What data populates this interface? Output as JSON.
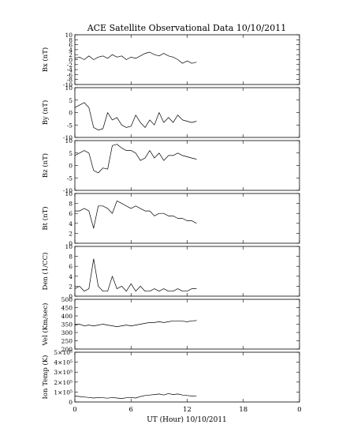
{
  "title": "ACE Satellite Observational Data   10/10/2011",
  "xlabel": "UT (Hour)   10/10/2011",
  "x_ticks": [
    "0",
    "6",
    "12",
    "18",
    "0"
  ],
  "chart_data": [
    {
      "type": "line",
      "ylabel": "Bx (nT)",
      "ylim": [
        -10,
        10
      ],
      "yticks": [
        10,
        8,
        6,
        4,
        2,
        0,
        -2,
        -4,
        -6,
        -8,
        -10
      ],
      "ytick_labels": [
        "10",
        "8",
        "6",
        "4",
        "2",
        "0",
        "-2",
        "-4",
        "-6",
        "-8",
        "-10"
      ],
      "x_hours": [
        0,
        0.5,
        1,
        1.5,
        2,
        2.5,
        3,
        3.5,
        4,
        4.5,
        5,
        5.5,
        6,
        6.5,
        7,
        7.5,
        8,
        8.5,
        9,
        9.5,
        10,
        10.5,
        11,
        11.5,
        12,
        12.5,
        13
      ],
      "values": [
        0.5,
        1,
        0,
        1.5,
        0,
        1,
        1.5,
        0.5,
        2,
        1,
        1.5,
        0,
        1,
        0.5,
        1.5,
        2.5,
        3,
        2,
        1.5,
        2.5,
        1.5,
        1,
        0,
        -1.5,
        -0.5,
        -1.5,
        -1
      ]
    },
    {
      "type": "line",
      "ylabel": "By (nT)",
      "ylim": [
        -10,
        10
      ],
      "yticks": [
        10,
        5,
        0,
        -5,
        -10
      ],
      "ytick_labels": [
        "10",
        "5",
        "0",
        "-5",
        "-10"
      ],
      "x_hours": [
        0,
        0.5,
        1,
        1.5,
        2,
        2.5,
        3,
        3.5,
        4,
        4.5,
        5,
        5.5,
        6,
        6.5,
        7,
        7.5,
        8,
        8.5,
        9,
        9.5,
        10,
        10.5,
        11,
        11.5,
        12,
        12.5,
        13
      ],
      "values": [
        2,
        3,
        4,
        2,
        -6,
        -7,
        -6.5,
        0,
        -3,
        -2,
        -5,
        -6,
        -5.5,
        -1,
        -4,
        -6,
        -3,
        -5,
        0,
        -4,
        -2,
        -4,
        -1,
        -3,
        -3.5,
        -4,
        -3.5
      ]
    },
    {
      "type": "line",
      "ylabel": "Bz (nT)",
      "ylim": [
        -10,
        10
      ],
      "yticks": [
        10,
        5,
        0,
        -5,
        -10
      ],
      "ytick_labels": [
        "10",
        "5",
        "0",
        "-5",
        "-10"
      ],
      "x_hours": [
        0,
        0.5,
        1,
        1.5,
        2,
        2.5,
        3,
        3.5,
        4,
        4.5,
        5,
        5.5,
        6,
        6.5,
        7,
        7.5,
        8,
        8.5,
        9,
        9.5,
        10,
        10.5,
        11,
        11.5,
        12,
        12.5,
        13
      ],
      "values": [
        4,
        5,
        6,
        5,
        -2,
        -3,
        -1,
        -1.5,
        8,
        8.5,
        7,
        6,
        6,
        5,
        2,
        3,
        6,
        3,
        5,
        2,
        4,
        4,
        5,
        4,
        3.5,
        3,
        2.5
      ]
    },
    {
      "type": "line",
      "ylabel": "Bt (nT)",
      "ylim": [
        0,
        10
      ],
      "yticks": [
        10,
        8,
        6,
        4,
        2,
        0
      ],
      "ytick_labels": [
        "10",
        "8",
        "6",
        "4",
        "2",
        "0"
      ],
      "x_hours": [
        0,
        0.5,
        1,
        1.5,
        2,
        2.5,
        3,
        3.5,
        4,
        4.5,
        5,
        5.5,
        6,
        6.5,
        7,
        7.5,
        8,
        8.5,
        9,
        9.5,
        10,
        10.5,
        11,
        11.5,
        12,
        12.5,
        13
      ],
      "values": [
        6.5,
        6.5,
        7,
        6.5,
        3,
        7.5,
        7.5,
        7,
        6,
        8.5,
        8,
        7.5,
        7,
        7.5,
        7,
        6.5,
        6.5,
        5.5,
        6,
        6,
        5.5,
        5.5,
        5,
        5,
        4.5,
        4.5,
        4
      ]
    },
    {
      "type": "line",
      "ylabel": "Den (1/CC)",
      "ylim": [
        0,
        10
      ],
      "yticks": [
        10,
        8,
        6,
        4,
        2,
        0
      ],
      "ytick_labels": [
        "10",
        "8",
        "6",
        "4",
        "2",
        "0"
      ],
      "x_hours": [
        0,
        0.5,
        1,
        1.5,
        2,
        2.5,
        3,
        3.5,
        4,
        4.5,
        5,
        5.5,
        6,
        6.5,
        7,
        7.5,
        8,
        8.5,
        9,
        9.5,
        10,
        10.5,
        11,
        11.5,
        12,
        12.5,
        13
      ],
      "values": [
        1.5,
        2,
        1,
        1.5,
        7.5,
        2,
        1,
        1,
        4,
        1.5,
        2,
        1,
        2.5,
        1,
        2,
        1,
        1,
        1.5,
        1,
        1.5,
        1,
        1,
        1.5,
        1,
        1,
        1.5,
        1.5
      ]
    },
    {
      "type": "line",
      "ylabel": "Vel (Km/sec)",
      "ylim": [
        200,
        500
      ],
      "yticks": [
        500,
        450,
        400,
        350,
        300,
        250,
        200
      ],
      "ytick_labels": [
        "500",
        "450",
        "400",
        "350",
        "300",
        "250",
        "200"
      ],
      "x_hours": [
        0,
        0.5,
        1,
        1.5,
        2,
        2.5,
        3,
        3.5,
        4,
        4.5,
        5,
        5.5,
        6,
        6.5,
        7,
        7.5,
        8,
        8.5,
        9,
        9.5,
        10,
        10.5,
        11,
        11.5,
        12,
        12.5,
        13
      ],
      "values": [
        345,
        350,
        340,
        345,
        340,
        345,
        350,
        345,
        340,
        335,
        340,
        345,
        340,
        345,
        350,
        355,
        360,
        360,
        365,
        360,
        365,
        370,
        370,
        368,
        365,
        370,
        372
      ]
    },
    {
      "type": "line",
      "ylabel": "Ion Temp (K)",
      "ylim": [
        0,
        500000
      ],
      "yticks": [
        500000,
        400000,
        300000,
        200000,
        100000,
        0
      ],
      "ytick_labels": [
        "5×10⁵",
        "4×10⁵",
        "3×10⁵",
        "2×10⁵",
        "1×10⁵",
        "0"
      ],
      "x_hours": [
        0,
        0.5,
        1,
        1.5,
        2,
        2.5,
        3,
        3.5,
        4,
        4.5,
        5,
        5.5,
        6,
        6.5,
        7,
        7.5,
        8,
        8.5,
        9,
        9.5,
        10,
        10.5,
        11,
        11.5,
        12,
        12.5,
        13
      ],
      "values": [
        60000,
        55000,
        50000,
        45000,
        40000,
        45000,
        42000,
        38000,
        45000,
        40000,
        35000,
        42000,
        45000,
        40000,
        55000,
        65000,
        70000,
        75000,
        80000,
        70000,
        85000,
        75000,
        80000,
        70000,
        65000,
        60000,
        62000
      ]
    }
  ]
}
